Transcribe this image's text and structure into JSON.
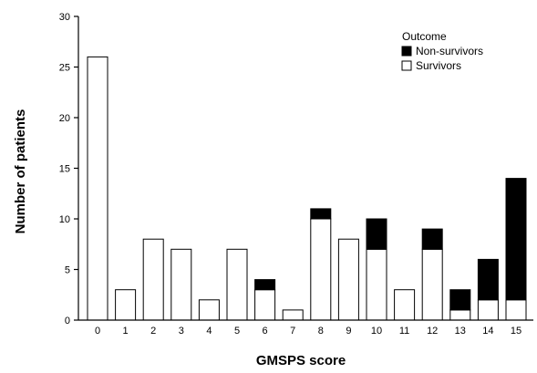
{
  "chart_data": {
    "type": "bar",
    "stacked": true,
    "categories": [
      "0",
      "1",
      "2",
      "3",
      "4",
      "5",
      "6",
      "7",
      "8",
      "9",
      "10",
      "11",
      "12",
      "13",
      "14",
      "15"
    ],
    "series": [
      {
        "name": "Survivors",
        "color": "#ffffff",
        "values": [
          26,
          3,
          8,
          7,
          2,
          7,
          3,
          1,
          10,
          8,
          7,
          3,
          7,
          1,
          2,
          2
        ]
      },
      {
        "name": "Non-survivors",
        "color": "#000000",
        "values": [
          0,
          0,
          0,
          0,
          0,
          0,
          1,
          0,
          1,
          0,
          3,
          0,
          2,
          2,
          4,
          12
        ]
      }
    ],
    "xlabel": "GMSPS score",
    "ylabel": "Number of patients",
    "ylim": [
      0,
      30
    ],
    "yticks": [
      0,
      5,
      10,
      15,
      20,
      25,
      30
    ],
    "legend": {
      "title": "Outcome",
      "entries": [
        "Non-survivors",
        "Survivors"
      ],
      "position": "top-right"
    },
    "grid": false
  }
}
